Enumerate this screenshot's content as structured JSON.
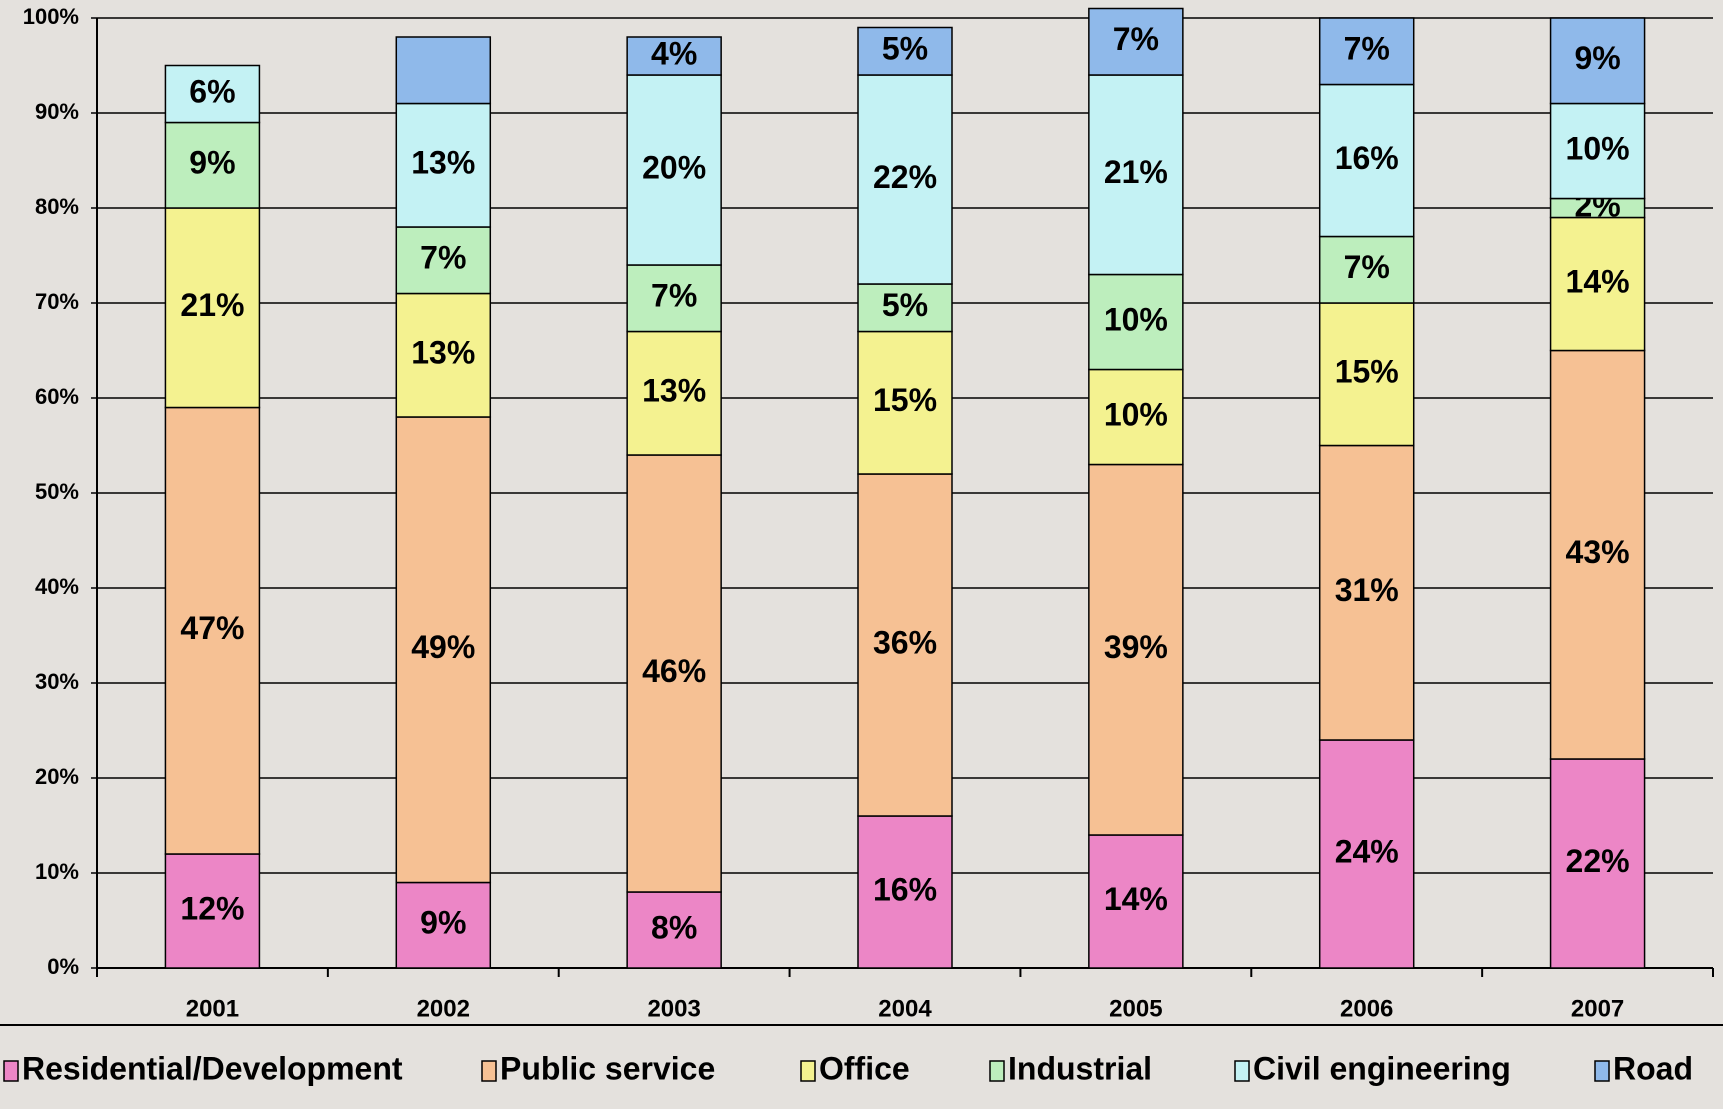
{
  "chart_data": {
    "type": "stacked_bar",
    "categories": [
      "2001",
      "2002",
      "2003",
      "2004",
      "2005",
      "2006",
      "2007"
    ],
    "series": [
      {
        "name": "Residential/Development",
        "color": "#ec86c6",
        "values": [
          12,
          9,
          8,
          16,
          14,
          24,
          22
        ],
        "value_labels": [
          "12%",
          "9%",
          "8%",
          "16%",
          "14%",
          "24%",
          "22%"
        ]
      },
      {
        "name": "Public service",
        "color": "#f6c194",
        "values": [
          47,
          49,
          46,
          36,
          39,
          31,
          43
        ],
        "value_labels": [
          "47%",
          "49%",
          "46%",
          "36%",
          "39%",
          "31%",
          "43%"
        ]
      },
      {
        "name": "Office",
        "color": "#f4f290",
        "values": [
          21,
          13,
          13,
          15,
          10,
          15,
          14
        ],
        "value_labels": [
          "21%",
          "13%",
          "13%",
          "15%",
          "10%",
          "15%",
          "14%"
        ]
      },
      {
        "name": "Industrial",
        "color": "#bdeebd",
        "values": [
          9,
          7,
          7,
          5,
          10,
          7,
          2
        ],
        "value_labels": [
          "9%",
          "7%",
          "7%",
          "5%",
          "10%",
          "7%",
          "2%"
        ]
      },
      {
        "name": "Civil engineering",
        "color": "#c4f2f4",
        "values": [
          6,
          13,
          20,
          22,
          21,
          16,
          10
        ],
        "value_labels": [
          "6%",
          "13%",
          "20%",
          "22%",
          "21%",
          "16%",
          "10%"
        ]
      },
      {
        "name": "Road",
        "color": "#8fb9ea",
        "values": [
          null,
          7,
          4,
          5,
          7,
          7,
          9
        ],
        "value_labels": [
          null,
          null,
          "4%",
          "5%",
          "7%",
          "7%",
          "9%"
        ]
      }
    ],
    "ylim": [
      0,
      100
    ],
    "yticks": [
      {
        "value": 0,
        "label": "0%"
      },
      {
        "value": 10,
        "label": "10%"
      },
      {
        "value": 20,
        "label": "20%"
      },
      {
        "value": 30,
        "label": "30%"
      },
      {
        "value": 40,
        "label": "40%"
      },
      {
        "value": 50,
        "label": "50%"
      },
      {
        "value": 60,
        "label": "60%"
      },
      {
        "value": 70,
        "label": "70%"
      },
      {
        "value": 80,
        "label": "80%"
      },
      {
        "value": 90,
        "label": "90%"
      },
      {
        "value": 100,
        "label": "100%"
      }
    ],
    "grid": true,
    "legend": "bottom"
  }
}
